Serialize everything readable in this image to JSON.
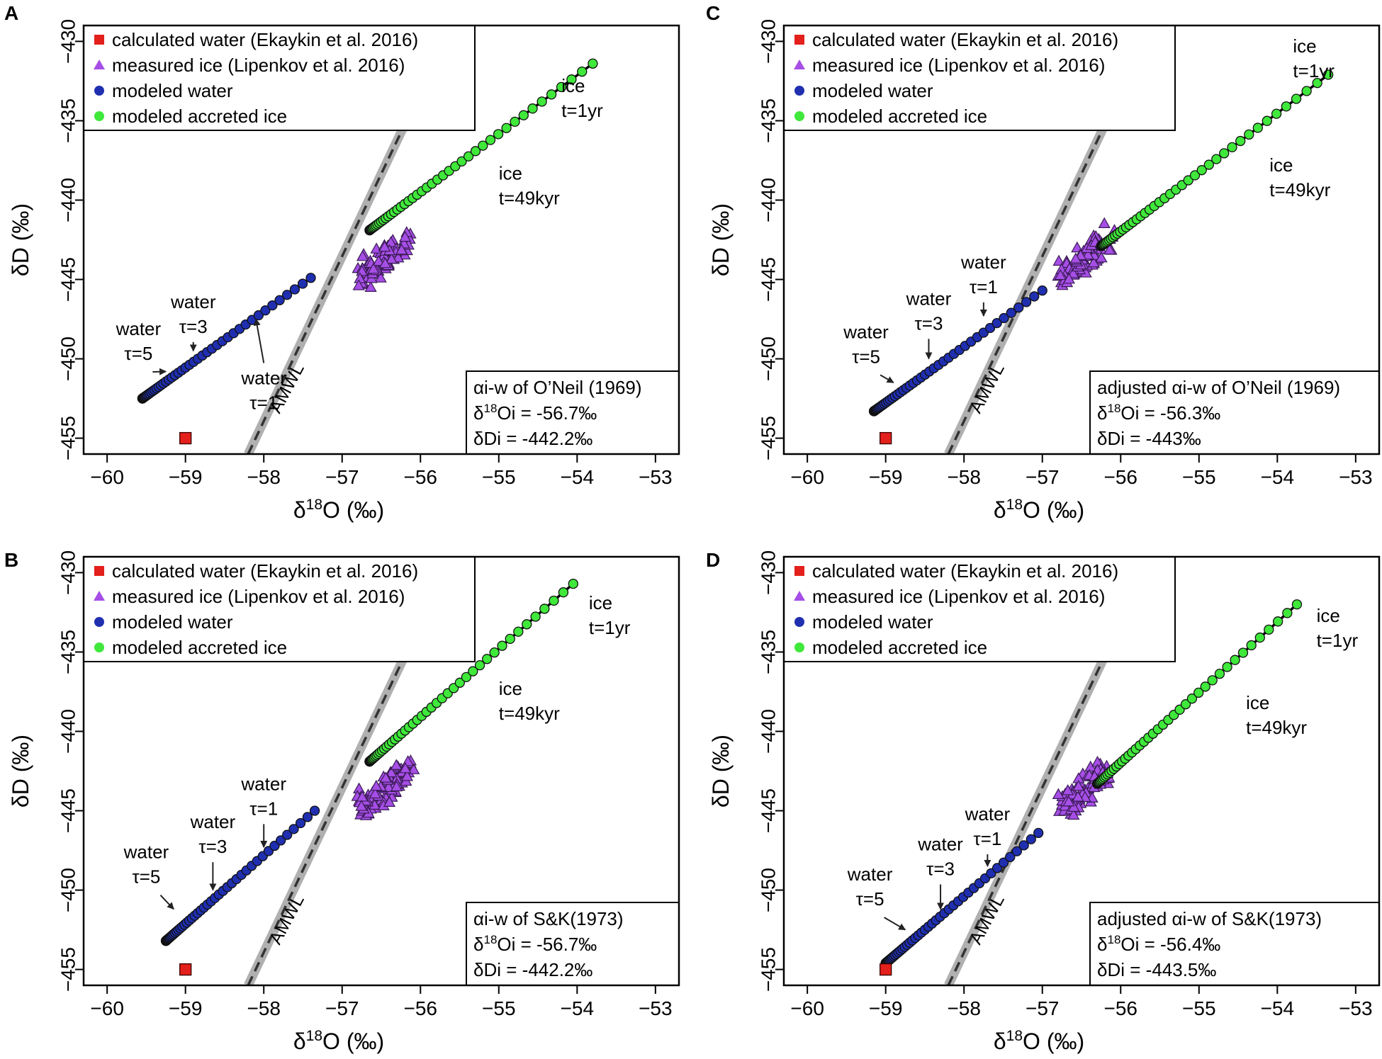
{
  "figure": {
    "axis_labels": {
      "x_prefix": "δ",
      "x_sup": "18",
      "x_suffix": "O (‰)",
      "y": "δD (‰)"
    }
  },
  "colors": {
    "calculated_water": "#e3201b",
    "measured_ice": "#a64ee6",
    "modeled_water": "#1f2fb0",
    "modeled_accreted_ice": "#3fe83a",
    "amwl_band": "#b0b0b0",
    "amwl_dash": "#333333"
  },
  "chart_data": [
    {
      "panel": "A",
      "type": "scatter",
      "xlabel": "δ18O (‰)",
      "ylabel": "δD (‰)",
      "xlim": [
        -60.3,
        -52.7
      ],
      "ylim": [
        -456,
        -429
      ],
      "xticks": [
        -60,
        -59,
        -58,
        -57,
        -56,
        -55,
        -54,
        -53
      ],
      "yticks": [
        -430,
        -435,
        -440,
        -445,
        -450,
        -455
      ],
      "legend": [
        "calculated water (Ekaykin et al. 2016)",
        "measured ice (Lipenkov et al. 2016)",
        "modeled water",
        "modeled accreted ice"
      ],
      "calculated_water": [
        -59.0,
        -455.0
      ],
      "measured_ice_center": [
        -56.3,
        -442.9
      ],
      "water_line": {
        "start": [
          -59.55,
          -452.5
        ],
        "end": [
          -57.4,
          -444.9
        ]
      },
      "ice_line": {
        "start": [
          -56.65,
          -441.9
        ],
        "end": [
          -53.8,
          -431.4
        ]
      },
      "amwl": {
        "start": [
          -58.2,
          -456
        ],
        "end": [
          -55.6,
          -429
        ]
      },
      "amwl_label": "AMWL",
      "annotations": [
        {
          "text": "ice",
          "text2": "t=1yr",
          "pos": [
            -54.2,
            -433.2
          ]
        },
        {
          "text": "ice",
          "text2": "t=49kyr",
          "pos": [
            -55.0,
            -438.7
          ]
        },
        {
          "text": "water",
          "text2": "τ=3",
          "pos": [
            -58.9,
            -446.8
          ],
          "arrow_to": [
            -58.9,
            -449.5
          ]
        },
        {
          "text": "water",
          "text2": "τ=5",
          "pos": [
            -59.6,
            -448.5
          ],
          "arrow_to": [
            -59.25,
            -450.8
          ]
        },
        {
          "text": "water",
          "text2": "τ=1",
          "pos": [
            -58.0,
            -451.6
          ],
          "arrow_to": [
            -58.1,
            -447.5
          ]
        }
      ],
      "info_box": [
        {
          "main": "αi-w of O’Neil (1969)"
        },
        {
          "pre": "δ",
          "sup": "18",
          "main": "Oi = -56.7‰"
        },
        {
          "main": "δDi = -442.2‰"
        }
      ]
    },
    {
      "panel": "C",
      "type": "scatter",
      "xlabel": "δ18O (‰)",
      "ylabel": "δD (‰)",
      "xlim": [
        -60.3,
        -52.7
      ],
      "ylim": [
        -456,
        -429
      ],
      "xticks": [
        -60,
        -59,
        -58,
        -57,
        -56,
        -55,
        -54,
        -53
      ],
      "yticks": [
        -430,
        -435,
        -440,
        -445,
        -450,
        -455
      ],
      "legend": [
        "calculated water (Ekaykin et al. 2016)",
        "measured ice (Lipenkov et al. 2016)",
        "modeled water",
        "modeled accreted ice"
      ],
      "calculated_water": [
        -59.0,
        -455.0
      ],
      "measured_ice_center": [
        -56.3,
        -442.9
      ],
      "water_line": {
        "start": [
          -59.15,
          -453.3
        ],
        "end": [
          -57.0,
          -445.7
        ]
      },
      "ice_line": {
        "start": [
          -56.25,
          -442.9
        ],
        "end": [
          -53.35,
          -432.1
        ]
      },
      "amwl": {
        "start": [
          -58.2,
          -456
        ],
        "end": [
          -55.6,
          -429
        ]
      },
      "amwl_label": "AMWL",
      "annotations": [
        {
          "text": "ice",
          "text2": "t=1yr",
          "pos": [
            -53.8,
            -430.7
          ]
        },
        {
          "text": "ice",
          "text2": "t=49kyr",
          "pos": [
            -54.1,
            -438.2
          ]
        },
        {
          "text": "water",
          "text2": "τ=1",
          "pos": [
            -57.75,
            -444.3
          ],
          "arrow_to": [
            -57.75,
            -447.3
          ]
        },
        {
          "text": "water",
          "text2": "τ=3",
          "pos": [
            -58.45,
            -446.6
          ],
          "arrow_to": [
            -58.45,
            -450.0
          ]
        },
        {
          "text": "water",
          "text2": "τ=5",
          "pos": [
            -59.25,
            -448.7
          ],
          "arrow_to": [
            -58.9,
            -451.5
          ]
        }
      ],
      "info_box": [
        {
          "main": "adjusted αi-w of O’Neil (1969)"
        },
        {
          "pre": "δ",
          "sup": "18",
          "main": "Oi = -56.3‰"
        },
        {
          "main": "δDi = -443‰"
        }
      ]
    },
    {
      "panel": "B",
      "type": "scatter",
      "xlabel": "δ18O (‰)",
      "ylabel": "δD (‰)",
      "xlim": [
        -60.3,
        -52.7
      ],
      "ylim": [
        -456,
        -429
      ],
      "xticks": [
        -60,
        -59,
        -58,
        -57,
        -56,
        -55,
        -54,
        -53
      ],
      "yticks": [
        -430,
        -435,
        -440,
        -445,
        -450,
        -455
      ],
      "legend": [
        "calculated water (Ekaykin et al. 2016)",
        "measured ice (Lipenkov et al. 2016)",
        "modeled water",
        "modeled accreted ice"
      ],
      "calculated_water": [
        -59.0,
        -455.0
      ],
      "measured_ice_center": [
        -56.3,
        -442.9
      ],
      "water_line": {
        "start": [
          -59.25,
          -453.2
        ],
        "end": [
          -57.35,
          -445.0
        ]
      },
      "ice_line": {
        "start": [
          -56.65,
          -441.9
        ],
        "end": [
          -54.05,
          -430.7
        ]
      },
      "amwl": {
        "start": [
          -58.2,
          -456
        ],
        "end": [
          -55.6,
          -429
        ]
      },
      "amwl_label": "AMWL",
      "annotations": [
        {
          "text": "ice",
          "text2": "t=1yr",
          "pos": [
            -53.85,
            -432.3
          ]
        },
        {
          "text": "ice",
          "text2": "t=49kyr",
          "pos": [
            -55.0,
            -437.7
          ]
        },
        {
          "text": "water",
          "text2": "τ=1",
          "pos": [
            -58.0,
            -443.7
          ],
          "arrow_to": [
            -58.0,
            -447.3
          ]
        },
        {
          "text": "water",
          "text2": "τ=3",
          "pos": [
            -58.65,
            -446.1
          ],
          "arrow_to": [
            -58.65,
            -450.0
          ]
        },
        {
          "text": "water",
          "text2": "τ=5",
          "pos": [
            -59.5,
            -448.0
          ],
          "arrow_to": [
            -59.15,
            -451.2
          ]
        }
      ],
      "info_box": [
        {
          "main": "αi-w of S&K(1973)"
        },
        {
          "pre": "δ",
          "sup": "18",
          "main": "Oi = -56.7‰"
        },
        {
          "main": "δDi = -442.2‰"
        }
      ]
    },
    {
      "panel": "D",
      "type": "scatter",
      "xlabel": "δ18O (‰)",
      "ylabel": "δD (‰)",
      "xlim": [
        -60.3,
        -52.7
      ],
      "ylim": [
        -456,
        -429
      ],
      "xticks": [
        -60,
        -59,
        -58,
        -57,
        -56,
        -55,
        -54,
        -53
      ],
      "yticks": [
        -430,
        -435,
        -440,
        -445,
        -450,
        -455
      ],
      "legend": [
        "calculated water (Ekaykin et al. 2016)",
        "measured ice (Lipenkov et al. 2016)",
        "modeled water",
        "modeled accreted ice"
      ],
      "calculated_water": [
        -59.0,
        -455.0
      ],
      "measured_ice_center": [
        -56.3,
        -442.9
      ],
      "water_line": {
        "start": [
          -59.0,
          -454.6
        ],
        "end": [
          -57.05,
          -446.4
        ]
      },
      "ice_line": {
        "start": [
          -56.3,
          -443.3
        ],
        "end": [
          -53.75,
          -432.0
        ]
      },
      "amwl": {
        "start": [
          -58.2,
          -456
        ],
        "end": [
          -55.6,
          -429
        ]
      },
      "amwl_label": "AMWL",
      "annotations": [
        {
          "text": "ice",
          "text2": "t=1yr",
          "pos": [
            -53.5,
            -433.1
          ]
        },
        {
          "text": "ice",
          "text2": "t=49kyr",
          "pos": [
            -54.4,
            -438.6
          ]
        },
        {
          "text": "water",
          "text2": "τ=1",
          "pos": [
            -57.7,
            -445.6
          ],
          "arrow_to": [
            -57.7,
            -448.5
          ]
        },
        {
          "text": "water",
          "text2": "τ=3",
          "pos": [
            -58.3,
            -447.5
          ],
          "arrow_to": [
            -58.3,
            -451.2
          ]
        },
        {
          "text": "water",
          "text2": "τ=5",
          "pos": [
            -59.2,
            -449.4
          ],
          "arrow_to": [
            -58.75,
            -452.5
          ]
        }
      ],
      "info_box": [
        {
          "main": "adjusted αi-w of S&K(1973)"
        },
        {
          "pre": "δ",
          "sup": "18",
          "main": "Oi = -56.4‰"
        },
        {
          "main": "δDi = -443.5‰"
        }
      ]
    }
  ]
}
